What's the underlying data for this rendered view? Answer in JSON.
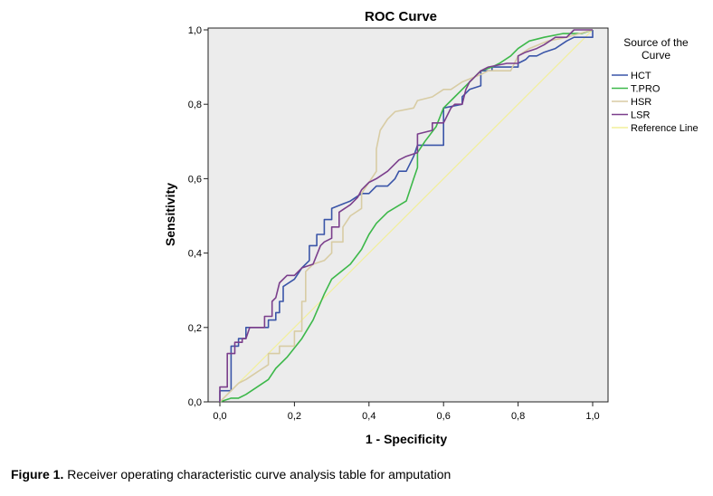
{
  "chart_data": {
    "type": "line",
    "title": "ROC Curve",
    "xlabel": "1 - Specificity",
    "ylabel": "Sensitivity",
    "xlim": [
      0,
      1
    ],
    "ylim": [
      0,
      1
    ],
    "x_ticks": [
      "0,0",
      "0,2",
      "0,4",
      "0,6",
      "0,8",
      "1,0"
    ],
    "y_ticks": [
      "0,0",
      "0,2",
      "0,4",
      "0,6",
      "0,8",
      "1,0"
    ],
    "grid": false,
    "plot_background": "#ececec",
    "legend": {
      "title_line1": "Source of the",
      "title_line2": "Curve",
      "placement": "right"
    },
    "series": [
      {
        "name": "HCT",
        "color": "#3a55a8",
        "points": [
          [
            0,
            0
          ],
          [
            0,
            0.03
          ],
          [
            0.03,
            0.03
          ],
          [
            0.03,
            0.15
          ],
          [
            0.05,
            0.15
          ],
          [
            0.05,
            0.17
          ],
          [
            0.07,
            0.17
          ],
          [
            0.07,
            0.2
          ],
          [
            0.09,
            0.2
          ],
          [
            0.13,
            0.2
          ],
          [
            0.13,
            0.22
          ],
          [
            0.15,
            0.22
          ],
          [
            0.15,
            0.24
          ],
          [
            0.16,
            0.24
          ],
          [
            0.16,
            0.27
          ],
          [
            0.17,
            0.27
          ],
          [
            0.17,
            0.31
          ],
          [
            0.2,
            0.33
          ],
          [
            0.22,
            0.36
          ],
          [
            0.24,
            0.38
          ],
          [
            0.24,
            0.42
          ],
          [
            0.26,
            0.42
          ],
          [
            0.26,
            0.45
          ],
          [
            0.28,
            0.45
          ],
          [
            0.28,
            0.49
          ],
          [
            0.3,
            0.49
          ],
          [
            0.3,
            0.52
          ],
          [
            0.35,
            0.54
          ],
          [
            0.38,
            0.56
          ],
          [
            0.4,
            0.56
          ],
          [
            0.42,
            0.58
          ],
          [
            0.45,
            0.58
          ],
          [
            0.47,
            0.6
          ],
          [
            0.48,
            0.62
          ],
          [
            0.5,
            0.62
          ],
          [
            0.52,
            0.66
          ],
          [
            0.53,
            0.69
          ],
          [
            0.6,
            0.69
          ],
          [
            0.6,
            0.79
          ],
          [
            0.65,
            0.8
          ],
          [
            0.65,
            0.82
          ],
          [
            0.67,
            0.84
          ],
          [
            0.7,
            0.85
          ],
          [
            0.7,
            0.89
          ],
          [
            0.73,
            0.89
          ],
          [
            0.73,
            0.9
          ],
          [
            0.8,
            0.9
          ],
          [
            0.8,
            0.91
          ],
          [
            0.82,
            0.92
          ],
          [
            0.83,
            0.93
          ],
          [
            0.85,
            0.93
          ],
          [
            0.87,
            0.94
          ],
          [
            0.9,
            0.95
          ],
          [
            0.93,
            0.97
          ],
          [
            0.95,
            0.98
          ],
          [
            1,
            0.98
          ],
          [
            1,
            1
          ]
        ]
      },
      {
        "name": "T.PRO",
        "color": "#3db84a",
        "points": [
          [
            0,
            0
          ],
          [
            0.03,
            0.01
          ],
          [
            0.05,
            0.01
          ],
          [
            0.07,
            0.02
          ],
          [
            0.1,
            0.04
          ],
          [
            0.13,
            0.06
          ],
          [
            0.15,
            0.09
          ],
          [
            0.18,
            0.12
          ],
          [
            0.22,
            0.17
          ],
          [
            0.25,
            0.22
          ],
          [
            0.28,
            0.29
          ],
          [
            0.3,
            0.33
          ],
          [
            0.35,
            0.37
          ],
          [
            0.38,
            0.41
          ],
          [
            0.4,
            0.45
          ],
          [
            0.42,
            0.48
          ],
          [
            0.45,
            0.51
          ],
          [
            0.5,
            0.54
          ],
          [
            0.52,
            0.6
          ],
          [
            0.53,
            0.63
          ],
          [
            0.53,
            0.67
          ],
          [
            0.55,
            0.7
          ],
          [
            0.58,
            0.74
          ],
          [
            0.6,
            0.79
          ],
          [
            0.63,
            0.82
          ],
          [
            0.65,
            0.84
          ],
          [
            0.68,
            0.87
          ],
          [
            0.7,
            0.89
          ],
          [
            0.73,
            0.9
          ],
          [
            0.75,
            0.91
          ],
          [
            0.78,
            0.93
          ],
          [
            0.8,
            0.95
          ],
          [
            0.83,
            0.97
          ],
          [
            0.87,
            0.98
          ],
          [
            0.92,
            0.99
          ],
          [
            0.97,
            0.99
          ],
          [
            1,
            1
          ]
        ]
      },
      {
        "name": "HSR",
        "color": "#d8cca4",
        "points": [
          [
            0,
            0
          ],
          [
            0.02,
            0.02
          ],
          [
            0.03,
            0.03
          ],
          [
            0.05,
            0.05
          ],
          [
            0.07,
            0.06
          ],
          [
            0.1,
            0.08
          ],
          [
            0.13,
            0.1
          ],
          [
            0.13,
            0.13
          ],
          [
            0.16,
            0.13
          ],
          [
            0.16,
            0.15
          ],
          [
            0.2,
            0.15
          ],
          [
            0.2,
            0.19
          ],
          [
            0.22,
            0.19
          ],
          [
            0.22,
            0.27
          ],
          [
            0.23,
            0.27
          ],
          [
            0.23,
            0.35
          ],
          [
            0.25,
            0.37
          ],
          [
            0.28,
            0.38
          ],
          [
            0.3,
            0.4
          ],
          [
            0.3,
            0.43
          ],
          [
            0.33,
            0.43
          ],
          [
            0.33,
            0.47
          ],
          [
            0.35,
            0.5
          ],
          [
            0.38,
            0.52
          ],
          [
            0.38,
            0.56
          ],
          [
            0.4,
            0.59
          ],
          [
            0.42,
            0.62
          ],
          [
            0.42,
            0.68
          ],
          [
            0.43,
            0.73
          ],
          [
            0.45,
            0.76
          ],
          [
            0.47,
            0.78
          ],
          [
            0.52,
            0.79
          ],
          [
            0.53,
            0.81
          ],
          [
            0.57,
            0.82
          ],
          [
            0.6,
            0.84
          ],
          [
            0.62,
            0.84
          ],
          [
            0.65,
            0.86
          ],
          [
            0.7,
            0.88
          ],
          [
            0.72,
            0.89
          ],
          [
            0.78,
            0.89
          ],
          [
            0.8,
            0.93
          ],
          [
            0.83,
            0.95
          ],
          [
            0.88,
            0.97
          ],
          [
            0.93,
            0.98
          ],
          [
            1,
            1
          ]
        ]
      },
      {
        "name": "LSR",
        "color": "#7b3f8c",
        "points": [
          [
            0,
            0
          ],
          [
            0,
            0.04
          ],
          [
            0.02,
            0.04
          ],
          [
            0.02,
            0.13
          ],
          [
            0.04,
            0.13
          ],
          [
            0.04,
            0.16
          ],
          [
            0.06,
            0.16
          ],
          [
            0.06,
            0.17
          ],
          [
            0.07,
            0.17
          ],
          [
            0.08,
            0.2
          ],
          [
            0.12,
            0.2
          ],
          [
            0.12,
            0.23
          ],
          [
            0.14,
            0.23
          ],
          [
            0.14,
            0.27
          ],
          [
            0.15,
            0.28
          ],
          [
            0.16,
            0.32
          ],
          [
            0.18,
            0.34
          ],
          [
            0.2,
            0.34
          ],
          [
            0.22,
            0.36
          ],
          [
            0.25,
            0.37
          ],
          [
            0.27,
            0.42
          ],
          [
            0.28,
            0.43
          ],
          [
            0.3,
            0.44
          ],
          [
            0.3,
            0.47
          ],
          [
            0.32,
            0.47
          ],
          [
            0.32,
            0.51
          ],
          [
            0.35,
            0.53
          ],
          [
            0.37,
            0.55
          ],
          [
            0.38,
            0.57
          ],
          [
            0.4,
            0.59
          ],
          [
            0.42,
            0.6
          ],
          [
            0.45,
            0.62
          ],
          [
            0.48,
            0.65
          ],
          [
            0.5,
            0.66
          ],
          [
            0.53,
            0.67
          ],
          [
            0.53,
            0.72
          ],
          [
            0.57,
            0.73
          ],
          [
            0.57,
            0.75
          ],
          [
            0.6,
            0.75
          ],
          [
            0.62,
            0.79
          ],
          [
            0.63,
            0.8
          ],
          [
            0.65,
            0.8
          ],
          [
            0.66,
            0.84
          ],
          [
            0.67,
            0.86
          ],
          [
            0.68,
            0.87
          ],
          [
            0.7,
            0.89
          ],
          [
            0.72,
            0.9
          ],
          [
            0.77,
            0.91
          ],
          [
            0.8,
            0.91
          ],
          [
            0.8,
            0.93
          ],
          [
            0.82,
            0.94
          ],
          [
            0.85,
            0.95
          ],
          [
            0.87,
            0.96
          ],
          [
            0.9,
            0.98
          ],
          [
            0.93,
            0.98
          ],
          [
            0.95,
            1
          ],
          [
            1,
            1
          ]
        ]
      },
      {
        "name": "Reference Line",
        "color": "#f2ef9a",
        "points": [
          [
            0,
            0
          ],
          [
            1,
            1
          ]
        ]
      }
    ]
  },
  "caption": {
    "prefix": "Figure 1.",
    "text": " Receiver operating characteristic curve analysis table for amputation"
  }
}
